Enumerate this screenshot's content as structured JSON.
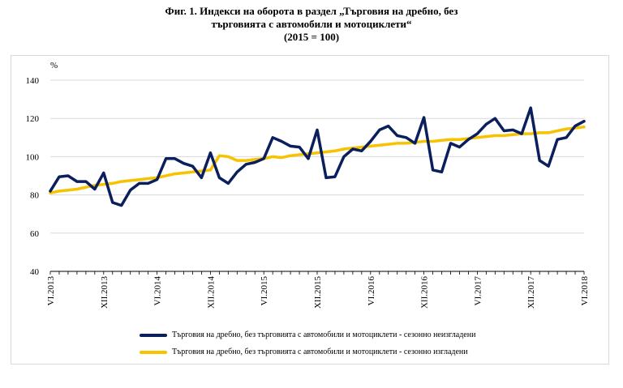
{
  "chart_data": {
    "type": "line",
    "title_lines": [
      "Фиг. 1. Индекси на оборота в раздел „Търговия на дребно, без",
      "търговията с автомобили и мотоциклети“",
      "(2015 = 100)"
    ],
    "ylabel": "%",
    "ylim": [
      40,
      140
    ],
    "yticks": [
      "40",
      "60",
      "80",
      "100",
      "120",
      "140"
    ],
    "xtick_labels": [
      "VI.2013",
      "XII.2013",
      "VI.2014",
      "XII.2014",
      "VI.2015",
      "XII.2015",
      "VI.2016",
      "XII.2016",
      "VI.2017",
      "XII.2017",
      "VI.2018"
    ],
    "xtick_index": [
      0,
      6,
      12,
      18,
      24,
      30,
      36,
      42,
      48,
      54,
      60
    ],
    "colors": {
      "unadjusted": "#0a1f5c",
      "adjusted": "#f7c200"
    },
    "series": [
      {
        "name": "Търговия на дребно, без търговията с автомобили и мотоциклети - сезонно неизгладени",
        "values": [
          82,
          89.5,
          90,
          87,
          87,
          83,
          91.5,
          76,
          74.5,
          82.5,
          86,
          86,
          88,
          99,
          99,
          96.5,
          95,
          89,
          102,
          89,
          86,
          92,
          96,
          97,
          99,
          110,
          108,
          105.5,
          105,
          99,
          114,
          89,
          89.5,
          100,
          104,
          103,
          108,
          114,
          116,
          111,
          110,
          107,
          120.5,
          93,
          92,
          107,
          105,
          109,
          112,
          117,
          120,
          113.5,
          114,
          112,
          125.5,
          98,
          95,
          109,
          110,
          116,
          118.5
        ]
      },
      {
        "name": "Търговия на дребно, без търговията с автомобили и мотоциклети - сезонно изгладени",
        "values": [
          81,
          82,
          82.5,
          83,
          84,
          85,
          85.5,
          86,
          87,
          87.5,
          88,
          88.5,
          89,
          90,
          91,
          91.5,
          92,
          92.5,
          93,
          100.5,
          100,
          98,
          98,
          98.5,
          99,
          100,
          99.5,
          100.5,
          101,
          101.5,
          102,
          102.5,
          103,
          104,
          104.5,
          105,
          105.5,
          106,
          106.5,
          107,
          107,
          107.5,
          108,
          108,
          108.5,
          109,
          109,
          109.5,
          110,
          110.5,
          111,
          111,
          111.5,
          112,
          112,
          112.5,
          112.5,
          113.5,
          114.5,
          115,
          115.5
        ]
      }
    ]
  }
}
